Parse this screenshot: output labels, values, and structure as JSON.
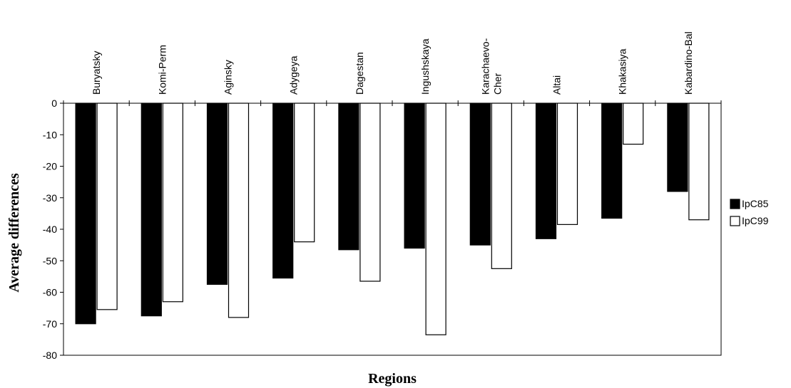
{
  "chart_data": {
    "type": "bar",
    "categories": [
      "Buryatsky",
      "Komi-Perm",
      "Aginsky",
      "Adygeya",
      "Dagestan",
      "Ingushskaya",
      "Karachaevo-Cher",
      "Altai",
      "Khakasiya",
      "Kabardino-Bal"
    ],
    "series": [
      {
        "name": "IpC85",
        "values": [
          -70,
          -67.5,
          -57.5,
          -55.5,
          -46.5,
          -46,
          -45,
          -43,
          -36.5,
          -28
        ],
        "color": "#000000"
      },
      {
        "name": "IpC99",
        "values": [
          -65.5,
          -63,
          -68,
          -44,
          -56.5,
          -73.5,
          -52.5,
          -38.5,
          -13,
          -37
        ],
        "color": "#ffffff"
      }
    ],
    "ylim": [
      -80,
      0
    ],
    "yticks": [
      0,
      -10,
      -20,
      -30,
      -40,
      -50,
      -60,
      -70,
      -80
    ],
    "xlabel": "Regions",
    "ylabel": "Average differences",
    "legend_position": "right",
    "grid": false
  }
}
